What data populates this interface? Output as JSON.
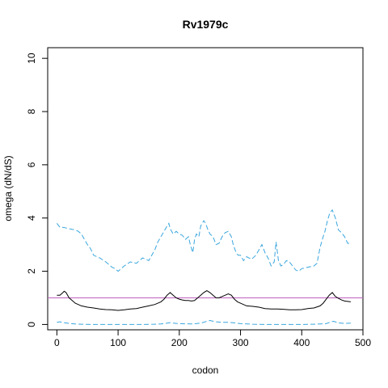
{
  "chart_data": {
    "type": "line",
    "title": "Rv1979c",
    "xlabel": "codon",
    "ylabel": "omega (dN/dS)",
    "xlim": [
      -15,
      500
    ],
    "ylim": [
      -0.2,
      10.4
    ],
    "x_ticks": [
      0,
      100,
      200,
      300,
      400,
      500
    ],
    "y_ticks": [
      0,
      2,
      4,
      6,
      8,
      10
    ],
    "grid": false,
    "legend": "none",
    "reference_line": {
      "y": 1,
      "color": "#c060c0"
    },
    "series": [
      {
        "style": "dashed",
        "color": "#3aa6dd",
        "x": [
          0,
          5,
          10,
          20,
          30,
          35,
          40,
          45,
          50,
          55,
          60,
          70,
          80,
          90,
          95,
          100,
          105,
          110,
          120,
          130,
          140,
          150,
          160,
          165,
          170,
          175,
          180,
          183,
          185,
          190,
          195,
          200,
          205,
          210,
          215,
          218,
          222,
          225,
          228,
          232,
          235,
          240,
          243,
          246,
          250,
          255,
          260,
          265,
          270,
          275,
          280,
          285,
          288,
          292,
          296,
          300,
          305,
          310,
          318,
          325,
          330,
          335,
          340,
          345,
          350,
          355,
          358,
          362,
          366,
          370,
          375,
          380,
          385,
          390,
          395,
          400,
          410,
          420,
          425,
          430,
          435,
          438,
          442,
          446,
          450,
          455,
          460,
          465,
          470,
          475,
          480
        ],
        "y": [
          3.8,
          3.65,
          3.65,
          3.6,
          3.55,
          3.5,
          3.4,
          3.2,
          3.0,
          2.85,
          2.6,
          2.5,
          2.35,
          2.15,
          2.1,
          2.0,
          2.1,
          2.2,
          2.35,
          2.3,
          2.5,
          2.4,
          2.8,
          3.1,
          3.3,
          3.5,
          3.7,
          3.8,
          3.6,
          3.4,
          3.5,
          3.4,
          3.35,
          3.2,
          3.3,
          3.0,
          2.7,
          3.2,
          3.4,
          3.3,
          3.7,
          3.9,
          3.8,
          3.6,
          3.4,
          3.3,
          3.0,
          3.05,
          3.3,
          3.45,
          3.5,
          3.3,
          3.0,
          2.75,
          2.6,
          2.6,
          2.4,
          2.55,
          2.45,
          2.6,
          2.8,
          3.0,
          2.7,
          2.5,
          2.2,
          2.35,
          3.1,
          2.4,
          2.2,
          2.25,
          2.4,
          2.35,
          2.2,
          2.05,
          2.0,
          2.1,
          2.15,
          2.2,
          2.3,
          2.9,
          3.3,
          3.5,
          3.9,
          4.2,
          4.3,
          4.0,
          3.55,
          3.45,
          3.3,
          3.05,
          3.05
        ]
      },
      {
        "style": "solid",
        "color": "#000000",
        "x": [
          0,
          5,
          10,
          12,
          15,
          20,
          25,
          30,
          40,
          50,
          60,
          70,
          80,
          90,
          100,
          110,
          120,
          130,
          140,
          150,
          160,
          165,
          170,
          175,
          180,
          185,
          190,
          195,
          200,
          205,
          210,
          215,
          220,
          225,
          230,
          235,
          240,
          245,
          250,
          255,
          260,
          265,
          270,
          275,
          280,
          285,
          290,
          295,
          300,
          310,
          320,
          330,
          340,
          350,
          360,
          370,
          380,
          390,
          400,
          410,
          420,
          430,
          435,
          440,
          445,
          450,
          455,
          460,
          465,
          470,
          480
        ],
        "y": [
          1.1,
          1.1,
          1.2,
          1.25,
          1.2,
          1.0,
          0.9,
          0.8,
          0.7,
          0.65,
          0.62,
          0.58,
          0.56,
          0.55,
          0.53,
          0.55,
          0.58,
          0.6,
          0.65,
          0.7,
          0.75,
          0.8,
          0.85,
          0.95,
          1.1,
          1.2,
          1.1,
          1.0,
          0.95,
          0.92,
          0.9,
          0.9,
          0.88,
          0.9,
          1.0,
          1.1,
          1.2,
          1.27,
          1.2,
          1.1,
          1.0,
          1.0,
          1.05,
          1.1,
          1.15,
          1.1,
          0.95,
          0.85,
          0.8,
          0.7,
          0.68,
          0.65,
          0.6,
          0.58,
          0.58,
          0.57,
          0.55,
          0.55,
          0.56,
          0.6,
          0.62,
          0.7,
          0.8,
          0.95,
          1.1,
          1.2,
          1.05,
          0.98,
          0.92,
          0.88,
          0.85
        ]
      },
      {
        "style": "dashed",
        "color": "#3aa6dd",
        "x": [
          0,
          5,
          10,
          20,
          30,
          40,
          60,
          80,
          100,
          120,
          140,
          160,
          170,
          180,
          185,
          190,
          200,
          220,
          235,
          245,
          250,
          260,
          270,
          280,
          290,
          300,
          320,
          340,
          360,
          380,
          400,
          420,
          440,
          448,
          452,
          460,
          470,
          480
        ],
        "y": [
          0.08,
          0.1,
          0.07,
          0.04,
          0.02,
          0.01,
          0.0,
          0.0,
          0.0,
          0.0,
          0.0,
          0.01,
          0.02,
          0.05,
          0.07,
          0.05,
          0.03,
          0.02,
          0.05,
          0.12,
          0.15,
          0.1,
          0.08,
          0.08,
          0.06,
          0.03,
          0.01,
          0.0,
          0.0,
          0.0,
          0.0,
          0.01,
          0.03,
          0.1,
          0.12,
          0.06,
          0.04,
          0.05
        ]
      }
    ]
  }
}
